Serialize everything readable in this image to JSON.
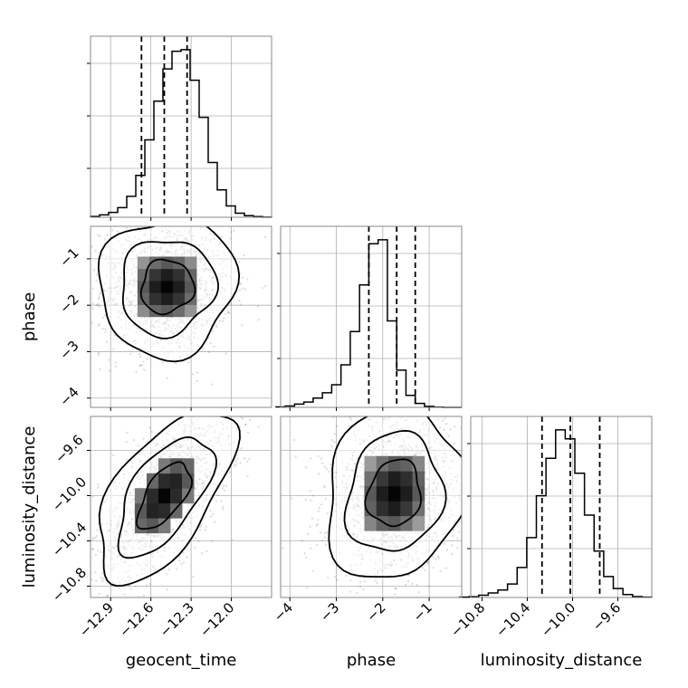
{
  "chart_data": {
    "type": "corner",
    "parameters": [
      "geocent_time",
      "phase",
      "luminosity_distance"
    ],
    "grid": true,
    "diagonal_histograms": [
      {
        "parameter": "geocent_time",
        "range": [
          -13.05,
          -11.7
        ],
        "bins": 20,
        "counts": [
          0.5,
          1.5,
          3,
          6,
          13,
          26,
          48,
          72,
          92,
          103,
          104,
          85,
          62,
          34,
          17,
          7,
          2.5,
          1,
          0.4,
          0.1
        ],
        "quantiles": [
          -12.67,
          -12.5,
          -12.33
        ],
        "ticks": [
          -12.9,
          -12.6,
          -12.3,
          -12.0
        ]
      },
      {
        "parameter": "phase",
        "range": [
          -4.3,
          -0.3
        ],
        "bins": 20,
        "counts": [
          0.3,
          1,
          2.5,
          4,
          7,
          11,
          17,
          32,
          57,
          92,
          123,
          126,
          65,
          28,
          9,
          3,
          0.8,
          0.2,
          0,
          0
        ],
        "quantiles": [
          -2.3,
          -1.7,
          -1.3
        ],
        "ticks": [
          -4,
          -3,
          -2,
          -1
        ]
      },
      {
        "parameter": "luminosity_distance",
        "range": [
          -11.0,
          -9.3
        ],
        "bins": 20,
        "counts": [
          0.2,
          0.5,
          1.5,
          3,
          5,
          9,
          20,
          40,
          68,
          93,
          112,
          106,
          83,
          55,
          31,
          14,
          6,
          2,
          0.6,
          0.2
        ],
        "quantiles": [
          -10.27,
          -10.02,
          -9.76
        ],
        "ticks": [
          -10.8,
          -10.4,
          -10.0,
          -9.6
        ]
      }
    ],
    "joint_distributions": [
      {
        "x": "geocent_time",
        "y": "phase",
        "peak": [
          -12.48,
          -1.6
        ],
        "correlation": 0.05
      },
      {
        "x": "geocent_time",
        "y": "luminosity_distance",
        "peak": [
          -12.5,
          -10.0
        ],
        "correlation": 0.6
      },
      {
        "x": "phase",
        "y": "luminosity_distance",
        "peak": [
          -1.75,
          -9.98
        ],
        "correlation": 0.12
      }
    ],
    "axis_ranges": {
      "geocent_time": [
        -13.05,
        -11.7
      ],
      "phase": [
        -4.2,
        -0.3
      ],
      "luminosity_distance": [
        -10.9,
        -9.3
      ]
    },
    "tick_labels": {
      "geocent_time": [
        "−12.9",
        "−12.6",
        "−12.3",
        "−12.0"
      ],
      "phase": [
        "−4",
        "−3",
        "−2",
        "−1"
      ],
      "luminosity_distance": [
        "−10.8",
        "−10.4",
        "−10.0",
        "−9.6"
      ]
    },
    "xlabels": [
      "geocent_time",
      "phase",
      "luminosity_distance"
    ],
    "ylabels": [
      "phase",
      "luminosity_distance"
    ]
  }
}
